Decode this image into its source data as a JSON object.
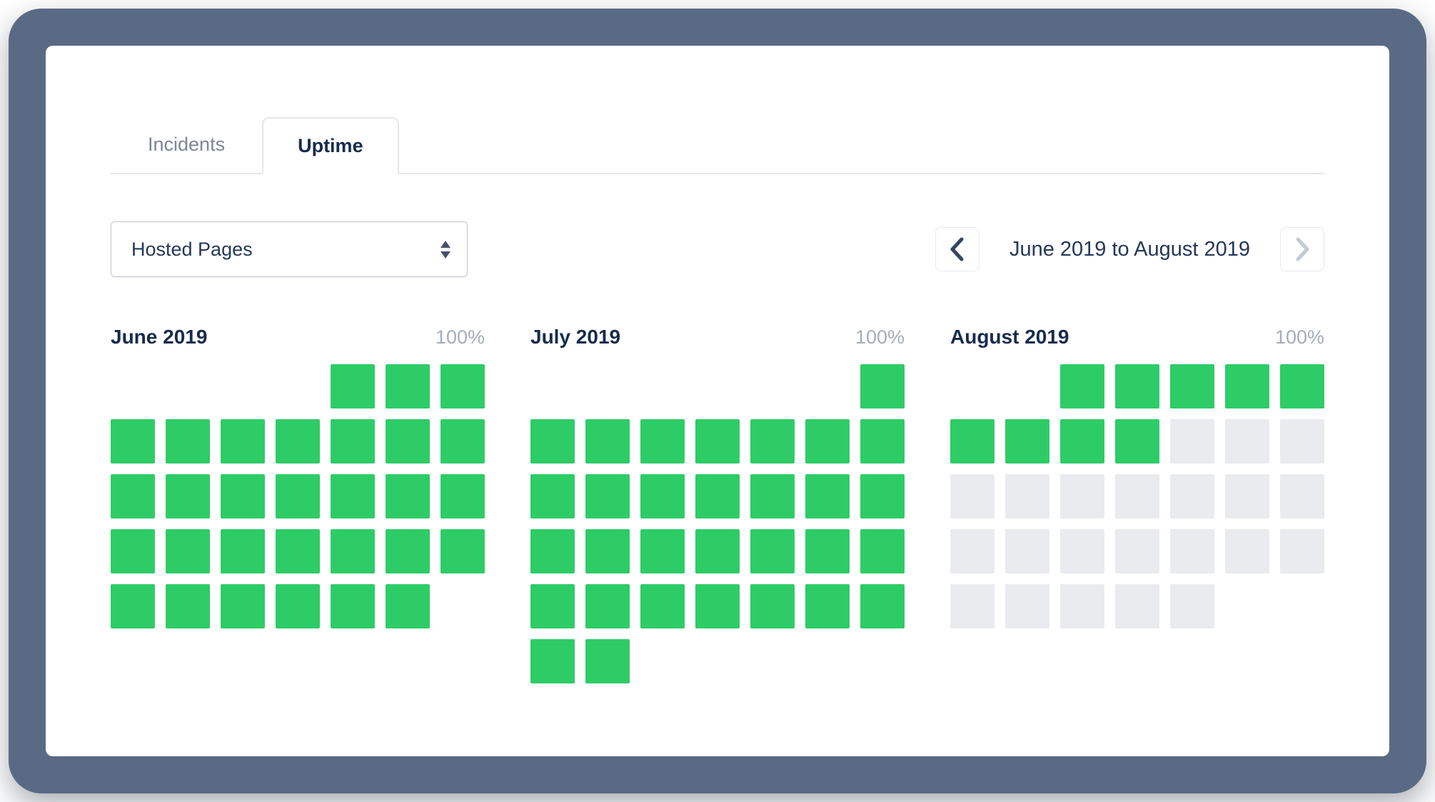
{
  "tabs": [
    {
      "label": "Incidents"
    },
    {
      "label": "Uptime"
    }
  ],
  "filter": {
    "selected": "Hosted Pages"
  },
  "range_nav": {
    "label": "June 2019 to August 2019"
  },
  "colors": {
    "up_green": "#2ecc66",
    "future_gray": "#e9ebee",
    "frame": "#5a6a85",
    "text_dark": "#172b4d",
    "text_muted": "#a5adba"
  },
  "chart_data": {
    "type": "heatmap",
    "title": "Uptime calendar, 100% uptime shown as green day squares, future days gray",
    "legend_position": "none",
    "months": [
      {
        "name": "June 2019",
        "uptime_label": "100%",
        "days_in_month": 30,
        "first_day_column": 5,
        "up_days": 30
      },
      {
        "name": "July 2019",
        "uptime_label": "100%",
        "days_in_month": 31,
        "first_day_column": 7,
        "up_days": 31
      },
      {
        "name": "August 2019",
        "uptime_label": "100%",
        "days_in_month": 31,
        "first_day_column": 3,
        "up_days": 9
      }
    ]
  }
}
